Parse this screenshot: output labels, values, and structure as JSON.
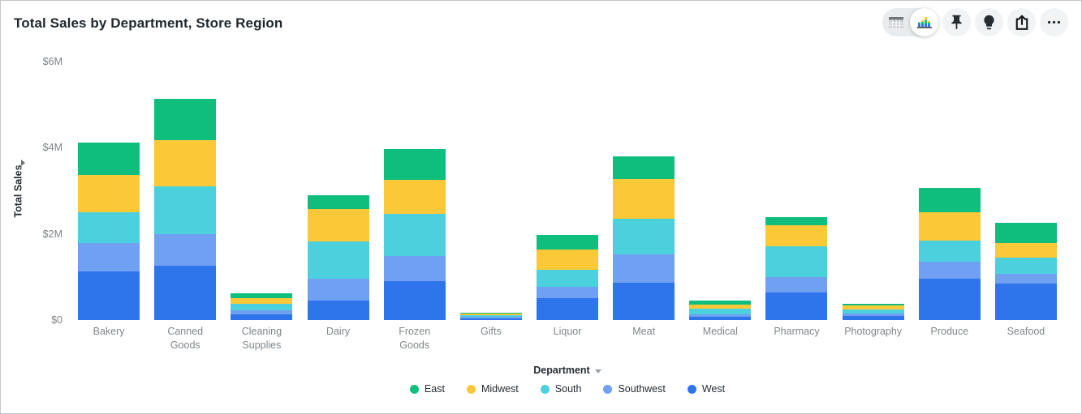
{
  "header": {
    "title": "Total Sales by Department, Store Region",
    "toolbar": {
      "view_toggle": {
        "options": [
          "table",
          "visualization"
        ],
        "selected": "visualization"
      },
      "buttons": [
        "pin",
        "lightbulb",
        "share",
        "more"
      ]
    }
  },
  "chart_data": {
    "type": "bar",
    "stacked": true,
    "title": "Total Sales by Department, Store Region",
    "xlabel": "Department",
    "ylabel": "Total Sales",
    "unit": "millions USD",
    "ylim": [
      0,
      6
    ],
    "yticks": [
      {
        "label": "$0",
        "value": 0
      },
      {
        "label": "$2M",
        "value": 2
      },
      {
        "label": "$4M",
        "value": 4
      },
      {
        "label": "$6M",
        "value": 6
      }
    ],
    "grid": false,
    "legend_position": "bottom",
    "categories": [
      "Bakery",
      "Canned Goods",
      "Cleaning Supplies",
      "Dairy",
      "Frozen Goods",
      "Gifts",
      "Liquor",
      "Meat",
      "Medical",
      "Pharmacy",
      "Photography",
      "Produce",
      "Seafood"
    ],
    "series": [
      {
        "name": "West",
        "color": "#2E75EC",
        "values": [
          1.13,
          1.27,
          0.14,
          0.45,
          0.91,
          0.04,
          0.5,
          0.86,
          0.08,
          0.64,
          0.09,
          0.96,
          0.84
        ]
      },
      {
        "name": "Southwest",
        "color": "#6FA0F2",
        "values": [
          0.65,
          0.73,
          0.08,
          0.52,
          0.58,
          0.03,
          0.27,
          0.66,
          0.06,
          0.36,
          0.06,
          0.39,
          0.24
        ]
      },
      {
        "name": "South",
        "color": "#4AD1DD",
        "values": [
          0.72,
          1.1,
          0.15,
          0.85,
          0.98,
          0.04,
          0.39,
          0.83,
          0.12,
          0.71,
          0.09,
          0.5,
          0.37
        ]
      },
      {
        "name": "Midwest",
        "color": "#FBC838",
        "values": [
          0.86,
          1.07,
          0.13,
          0.76,
          0.78,
          0.04,
          0.48,
          0.93,
          0.1,
          0.5,
          0.1,
          0.65,
          0.34
        ]
      },
      {
        "name": "East",
        "color": "#0FBD7D",
        "values": [
          0.75,
          0.97,
          0.12,
          0.31,
          0.72,
          0.03,
          0.34,
          0.52,
          0.09,
          0.19,
          0.03,
          0.56,
          0.46
        ]
      }
    ]
  }
}
